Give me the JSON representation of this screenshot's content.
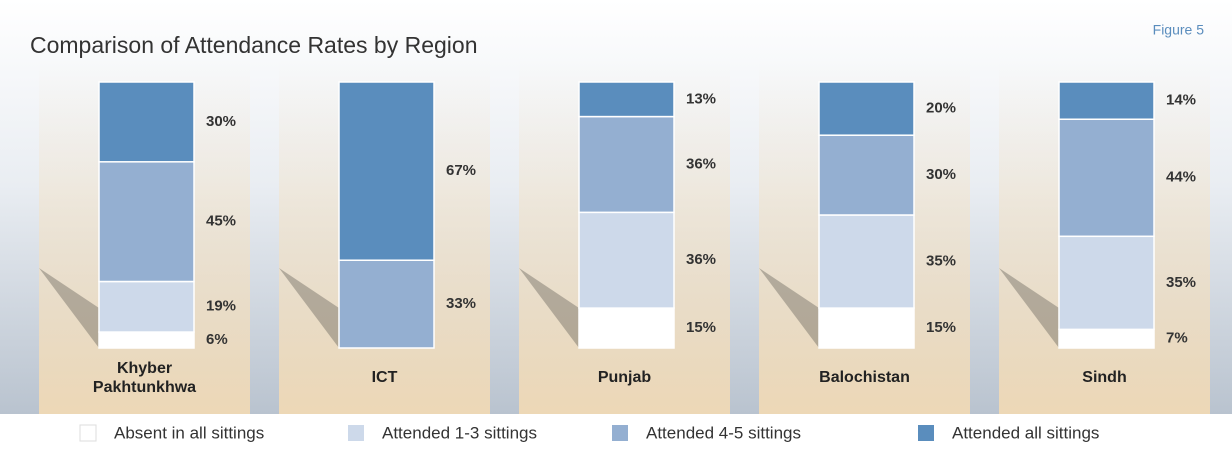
{
  "chart_data": {
    "type": "stacked-bar",
    "title": "Comparison of Attendance Rates by Region",
    "figure_label": "Figure 5",
    "categories": [
      "Khyber Pakhtunkhwa",
      "ICT",
      "Punjab",
      "Balochistan",
      "Sindh"
    ],
    "ylim": [
      0,
      100
    ],
    "series": [
      {
        "name": "Absent in all sittings",
        "color": "#ffffff",
        "values": [
          6,
          null,
          15,
          15,
          7
        ],
        "value_labels": [
          "6%",
          null,
          "15%",
          "15%",
          "7%"
        ]
      },
      {
        "name": "Attended 1-3 sittings",
        "color": "#cdd9ea",
        "values": [
          19,
          null,
          36,
          35,
          35
        ],
        "value_labels": [
          "19%",
          null,
          "36%",
          "35%",
          "35%"
        ]
      },
      {
        "name": "Attended 4-5 sittings",
        "color": "#94afd1",
        "values": [
          45,
          33,
          36,
          30,
          44
        ],
        "value_labels": [
          "45%",
          "33%",
          "36%",
          "30%",
          "44%"
        ]
      },
      {
        "name": "Attended all sittings",
        "color": "#5a8dbd",
        "values": [
          30,
          67,
          13,
          20,
          14
        ],
        "value_labels": [
          "30%",
          "67%",
          "13%",
          "20%",
          "14%"
        ]
      }
    ]
  }
}
